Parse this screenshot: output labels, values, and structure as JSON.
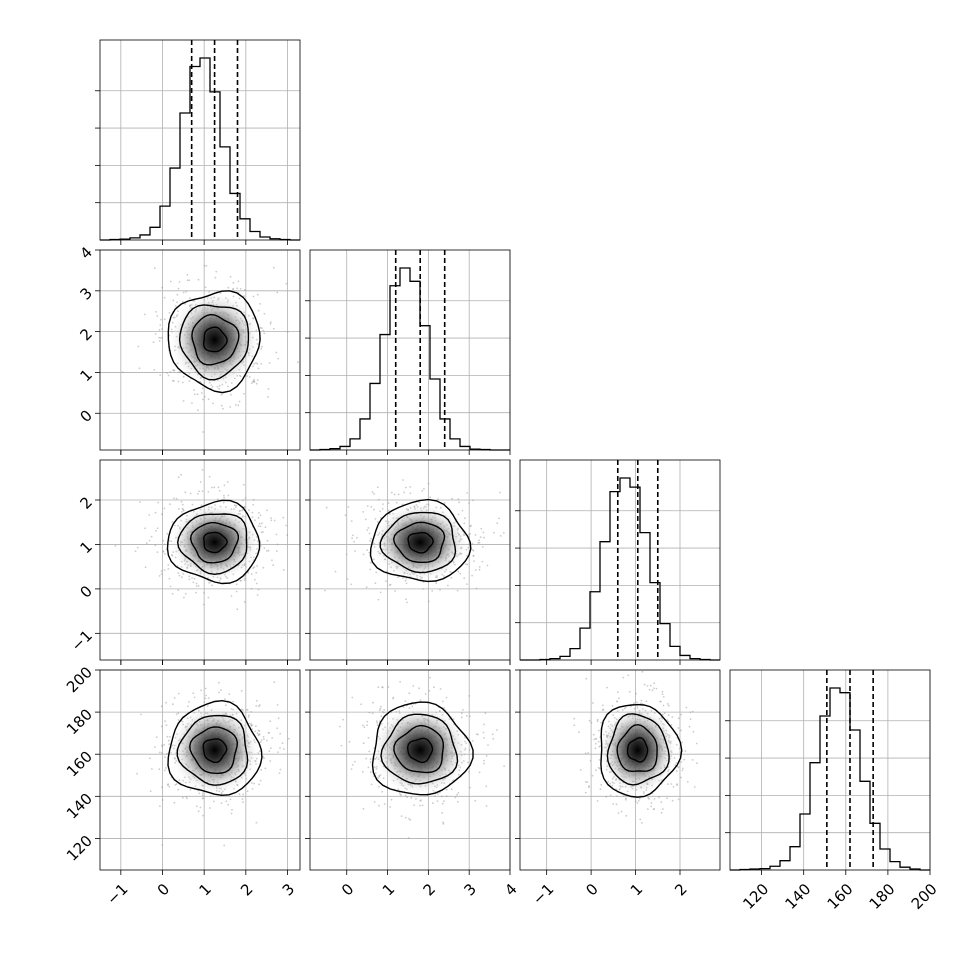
{
  "chart_data": {
    "type": "corner",
    "description_free": true,
    "parameters": [
      {
        "range": [
          -1.5,
          3.3
        ],
        "ticks": [
          -1,
          0,
          1,
          2,
          3
        ],
        "tick_labels": [
          "−1",
          "0",
          "1",
          "2",
          "3"
        ],
        "quantiles": [
          0.7,
          1.25,
          1.8
        ],
        "hist_bins": [
          -1.5,
          -1.26,
          -1.02,
          -0.78,
          -0.54,
          -0.3,
          -0.06,
          0.18,
          0.42,
          0.66,
          0.9,
          1.14,
          1.38,
          1.62,
          1.86,
          2.1,
          2.34,
          2.58,
          2.82,
          3.06,
          3.3
        ],
        "hist_counts": [
          0,
          1,
          2,
          5,
          12,
          30,
          80,
          170,
          300,
          410,
          430,
          350,
          220,
          110,
          50,
          20,
          7,
          3,
          1,
          0
        ],
        "mode": [
          1.25,
          1.8
        ]
      },
      {
        "range": [
          -0.9,
          4.0
        ],
        "ticks": [
          0,
          1,
          2,
          3,
          4
        ],
        "tick_labels": [
          "0",
          "1",
          "2",
          "3",
          "4"
        ],
        "quantiles": [
          1.2,
          1.8,
          2.4
        ],
        "hist_bins": [
          -0.9,
          -0.655,
          -0.41,
          -0.165,
          0.08,
          0.325,
          0.57,
          0.815,
          1.06,
          1.305,
          1.55,
          1.795,
          2.04,
          2.285,
          2.53,
          2.775,
          3.02,
          3.265,
          3.51,
          3.755,
          4.0
        ],
        "hist_counts": [
          0,
          1,
          3,
          8,
          25,
          70,
          150,
          260,
          370,
          410,
          380,
          280,
          160,
          70,
          25,
          8,
          2,
          1,
          0,
          0
        ]
      },
      {
        "range": [
          -1.6,
          2.9
        ],
        "ticks": [
          -1,
          0,
          1,
          2
        ],
        "tick_labels": [
          "−1",
          "0",
          "1",
          "2"
        ],
        "quantiles": [
          0.6,
          1.05,
          1.5
        ],
        "hist_bins": [
          -1.6,
          -1.375,
          -1.15,
          -0.925,
          -0.7,
          -0.475,
          -0.25,
          -0.025,
          0.2,
          0.425,
          0.65,
          0.875,
          1.1,
          1.325,
          1.55,
          1.775,
          2.0,
          2.225,
          2.45,
          2.675,
          2.9
        ],
        "hist_counts": [
          0,
          0,
          1,
          3,
          8,
          25,
          70,
          150,
          260,
          370,
          400,
          380,
          280,
          170,
          80,
          30,
          10,
          3,
          1,
          0
        ]
      },
      {
        "range": [
          105,
          200
        ],
        "ticks": [
          120,
          140,
          160,
          180,
          200
        ],
        "tick_labels": [
          "120",
          "140",
          "160",
          "180",
          "200"
        ],
        "quantiles": [
          151,
          162,
          173
        ],
        "hist_bins": [
          105,
          109.75,
          114.5,
          119.25,
          124,
          128.75,
          133.5,
          138.25,
          143,
          147.75,
          152.5,
          157.25,
          162,
          166.75,
          171.5,
          176.25,
          181,
          185.75,
          190.5,
          195.25,
          200
        ],
        "hist_counts": [
          0,
          1,
          2,
          3,
          8,
          20,
          50,
          120,
          230,
          330,
          390,
          380,
          300,
          190,
          100,
          45,
          18,
          6,
          2,
          0
        ]
      }
    ],
    "ylim": [
      [
        -1.5,
        3.3
      ],
      [
        -0.9,
        4.0
      ],
      [
        -1.6,
        2.9
      ],
      [
        105,
        200
      ]
    ],
    "grid": true,
    "legend": "none"
  }
}
